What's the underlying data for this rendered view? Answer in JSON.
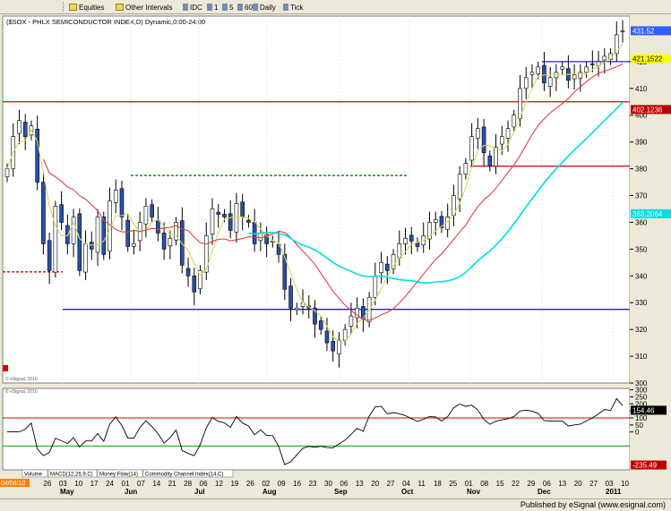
{
  "toolbar": {
    "items": [
      {
        "label": "Equities",
        "kind": "dropdown-folder"
      },
      {
        "label": "Other Intervals",
        "kind": "dropdown-folder"
      },
      {
        "label": "IDC",
        "kind": "button"
      },
      {
        "label": "1",
        "kind": "button"
      },
      {
        "label": "5",
        "kind": "button"
      },
      {
        "label": "60",
        "kind": "button"
      },
      {
        "label": "Daily",
        "kind": "button"
      },
      {
        "label": "Tick",
        "kind": "button"
      }
    ]
  },
  "chart": {
    "title": "($SOX - PHLX SEMICONDUCTOR INDEX,D) Dynamic,0:00-24:00",
    "watermark_price": "© eSignal, 2010",
    "watermark_ind": "© eSignal, 2010",
    "date_box": "04/08/10",
    "price_badges": [
      {
        "value": "431.52",
        "color": "#3060ff",
        "text_color": "#ffffff"
      },
      {
        "value": "421.1522",
        "color": "#ffff00",
        "text_color": "#000000"
      },
      {
        "value": "402.1236",
        "color": "#c00000",
        "text_color": "#ffffff"
      },
      {
        "value": "363.2064",
        "color": "#00e0e0",
        "text_color": "#ffffff"
      }
    ],
    "ind_badges": [
      {
        "value": "154.46",
        "color": "#000000",
        "text_color": "#ffffff"
      },
      {
        "value": "-235.49",
        "color": "#c00000",
        "text_color": "#ffffff"
      }
    ],
    "ind_tabs": [
      "Volume",
      "MACD(12,26,9,C)",
      "Money Flow(14)",
      "Commodity Channel Index(14,C)"
    ]
  },
  "chart_data": {
    "type": "candlestick",
    "title": "($SOX - PHLX SEMICONDUCTOR INDEX,D) Dynamic,0:00-24:00",
    "ylim": [
      300,
      437
    ],
    "y_ticks": [
      300,
      310,
      320,
      330,
      340,
      350,
      360,
      370,
      380,
      390,
      400,
      410,
      420
    ],
    "x_tick_labels": [
      "9",
      "26",
      "03",
      "10",
      "17",
      "24",
      "01",
      "07",
      "14",
      "21",
      "28",
      "06",
      "12",
      "19",
      "26",
      "02",
      "09",
      "16",
      "23",
      "30",
      "06",
      "13",
      "20",
      "27",
      "04",
      "11",
      "18",
      "25",
      "01",
      "08",
      "15",
      "22",
      "29",
      "06",
      "13",
      "20",
      "27",
      "03",
      "10"
    ],
    "month_labels": [
      "May",
      "Jun",
      "Jul",
      "Aug",
      "Sep",
      "Oct",
      "Nov",
      "Dec",
      "2011"
    ],
    "horizontal_levels": [
      {
        "value": 405,
        "color": "#e00000",
        "style": "solid",
        "from": "Apr",
        "to": "Jan"
      },
      {
        "value": 381,
        "color": "#e00000",
        "style": "solid",
        "from": "Nov",
        "to": "Jan"
      },
      {
        "value": 377.5,
        "color": "#008000",
        "style": "dashed",
        "from": "Jun",
        "to": "Oct"
      },
      {
        "value": 341.5,
        "color": "#e00000",
        "style": "dashed",
        "from": "Apr",
        "to": "May"
      },
      {
        "value": 327.5,
        "color": "#2020c0",
        "style": "solid",
        "from": "May",
        "to": "Jan"
      },
      {
        "value": 420,
        "color": "#2020c0",
        "style": "solid",
        "from": "Dec",
        "to": "Jan"
      }
    ],
    "closes": [
      380,
      392,
      398,
      392,
      396,
      375,
      352,
      342,
      366,
      360,
      352,
      362,
      342,
      352,
      350,
      362,
      348,
      368,
      372,
      362,
      351,
      352,
      360,
      366,
      362,
      356,
      350,
      354,
      360,
      344,
      340,
      334,
      342,
      355,
      365,
      363,
      362,
      357,
      367,
      362,
      360,
      352,
      356,
      352,
      353,
      348,
      335,
      328,
      328,
      330,
      328,
      322,
      320,
      315,
      312,
      316,
      320,
      325,
      328,
      324,
      332,
      340,
      345,
      342,
      348,
      352,
      354,
      353,
      351,
      355,
      360,
      361,
      358,
      362,
      370,
      378,
      382,
      392,
      395,
      386,
      381,
      388,
      392,
      395,
      400,
      410,
      414,
      416,
      418,
      412,
      414,
      416,
      418,
      413,
      415,
      416,
      418,
      419,
      420,
      422,
      423,
      430,
      431.5
    ],
    "moving_averages": [
      {
        "name": "MA short",
        "color": "#d8d860",
        "badge": "421.1522"
      },
      {
        "name": "MA medium",
        "color": "#e04040",
        "badge": "402.1236"
      },
      {
        "name": "MA long",
        "color": "#00e0e0",
        "badge": "363.2064"
      }
    ],
    "indicator": {
      "name": "Commodity Channel Index(14,C)",
      "ylim": [
        -270,
        310
      ],
      "y_ticks": [
        300,
        250,
        200,
        150,
        100,
        50,
        0
      ],
      "levels": [
        100,
        -100
      ],
      "last_value": 154.46
    }
  }
}
